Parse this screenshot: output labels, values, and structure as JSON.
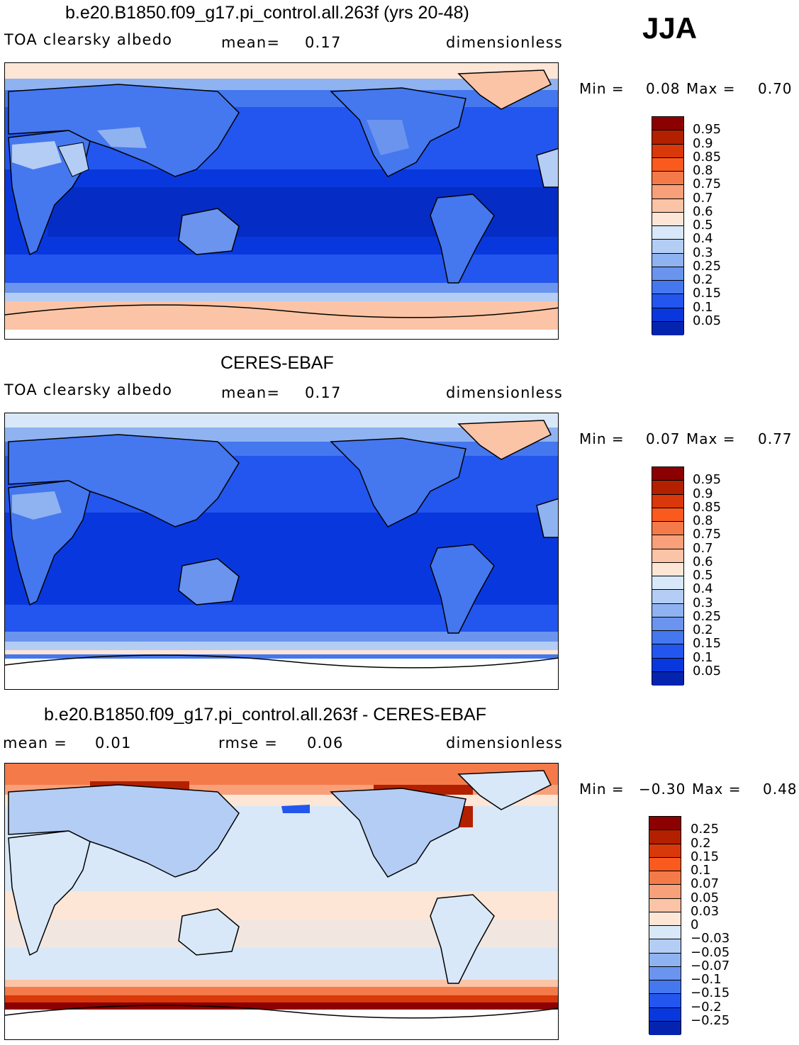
{
  "season": "JJA",
  "panels": [
    {
      "title": "b.e20.B1850.f09_g17.pi_control.all.263f (yrs 20-48)",
      "variable": "TOA clearsky albedo",
      "stat_label": "mean=",
      "stat_value": "0.17",
      "units": "dimensionless",
      "min_label": "Min =",
      "min_value": "0.08",
      "max_label": "Max =",
      "max_value": "0.70"
    },
    {
      "title": "CERES-EBAF",
      "variable": "TOA clearsky albedo",
      "stat_label": "mean=",
      "stat_value": "0.17",
      "units": "dimensionless",
      "min_label": "Min =",
      "min_value": "0.07",
      "max_label": "Max =",
      "max_value": "0.77"
    },
    {
      "title": "b.e20.B1850.f09_g17.pi_control.all.263f - CERES-EBAF",
      "stat_label": "mean =",
      "stat_value": "0.01",
      "rmse_label": "rmse =",
      "rmse_value": "0.06",
      "units": "dimensionless",
      "min_label": "Min =",
      "min_value": "−0.30",
      "max_label": "Max =",
      "max_value": "0.48"
    }
  ],
  "colorbars": {
    "field": {
      "colors": [
        "#8b0000",
        "#b22000",
        "#d8380a",
        "#fa5a1e",
        "#f47a4a",
        "#f7a07a",
        "#fbc4a6",
        "#fde6d6",
        "#d8e8f8",
        "#b4cdf4",
        "#8fb2f0",
        "#6a94ee",
        "#4577ee",
        "#2356ee",
        "#0838dd",
        "#0424b0",
        "#00107a"
      ],
      "labels": [
        "0.95",
        "0.9",
        "0.85",
        "0.8",
        "0.75",
        "0.7",
        "0.6",
        "0.5",
        "0.4",
        "0.3",
        "0.25",
        "0.2",
        "0.15",
        "0.1",
        "0.05"
      ]
    },
    "diff": {
      "colors": [
        "#8b0000",
        "#b22000",
        "#d8380a",
        "#fa5a1e",
        "#f47a4a",
        "#f7a07a",
        "#fbc4a6",
        "#fde6d6",
        "#d8e8f8",
        "#b4cdf4",
        "#8fb2f0",
        "#6a94ee",
        "#4577ee",
        "#2356ee",
        "#0838dd",
        "#0424b0",
        "#00107a"
      ],
      "labels": [
        "0.25",
        "0.2",
        "0.15",
        "0.1",
        "0.07",
        "0.05",
        "0.03",
        "0",
        "−0.03",
        "−0.05",
        "−0.07",
        "−0.1",
        "−0.15",
        "−0.2",
        "−0.25"
      ]
    }
  }
}
